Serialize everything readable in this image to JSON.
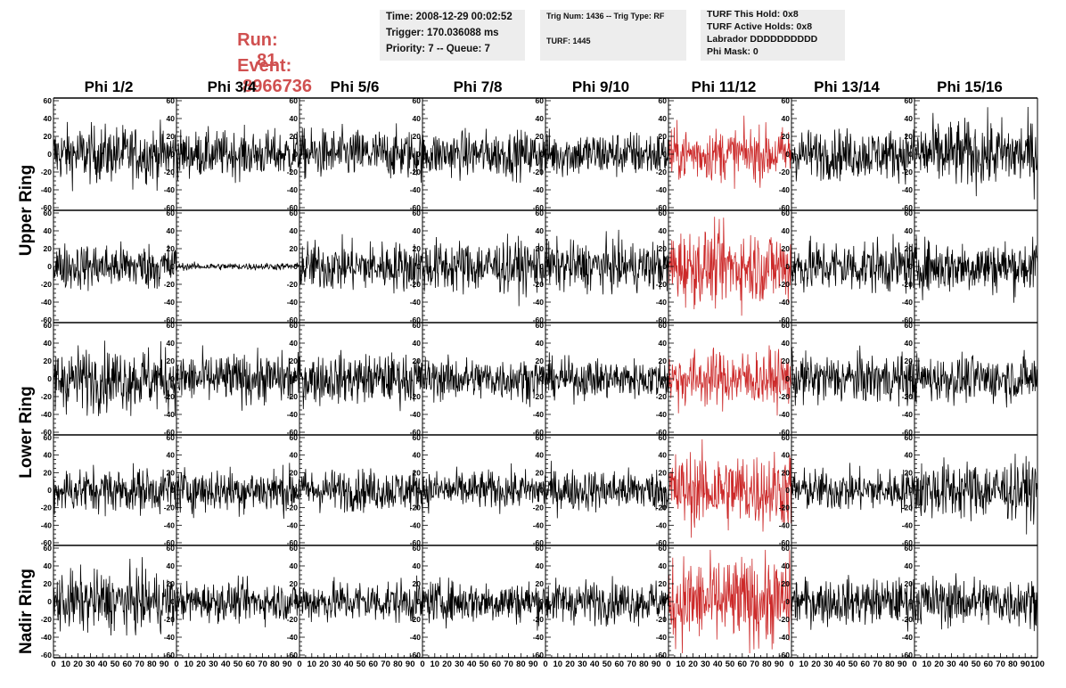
{
  "header": {
    "run_label": "Run:",
    "run_value": "81",
    "event_label": "Event:",
    "event_value": "8966736",
    "header_color": "#d05050",
    "time": "Time: 2008-12-29 00:02:52",
    "trigger": "Trigger: 170.036088 ms",
    "priority": "Priority: 7 -- Queue: 7",
    "trig_num": "Trig Num: 1436 -- Trig Type: RF",
    "turf": "TURF: 1445",
    "turf_hold": "TURF This Hold: 0x8",
    "turf_active": "TURF Active Holds: 0x8",
    "labrador": "Labrador DDDDDDDDDD",
    "phi_mask": "Phi Mask: 0"
  },
  "columns": [
    "Phi 1/2",
    "Phi 3/4",
    "Phi 5/6",
    "Phi 7/8",
    "Phi 9/10",
    "Phi 11/12",
    "Phi 13/14",
    "Phi 15/16"
  ],
  "rows": [
    "Upper Ring",
    "Lower Ring",
    "Nadir Ring"
  ],
  "chart_data": {
    "type": "line",
    "grid": false,
    "xlim": [
      0,
      100
    ],
    "ylim": [
      -60,
      60
    ],
    "ytick_labels": [
      "60",
      "40",
      "20",
      "0",
      "-20",
      "-40",
      "-60"
    ],
    "xtick_labels": [
      "0",
      "10",
      "20",
      "30",
      "40",
      "50",
      "60",
      "70",
      "80",
      "90",
      "100"
    ],
    "trace_color": "#000000",
    "highlight_color": "#cc2a2a",
    "highlighted_column": 5,
    "panels_grid": "5 rows x 8 columns",
    "trace_samples_per_panel": 260,
    "trace_amplitudes": [
      [
        16,
        13,
        14,
        13,
        13,
        15,
        14,
        19
      ],
      [
        13,
        2,
        14,
        15,
        14,
        21,
        15,
        15
      ],
      [
        18,
        14,
        14,
        12,
        11,
        16,
        14,
        13
      ],
      [
        13,
        13,
        12,
        11,
        12,
        22,
        12,
        17
      ],
      [
        17,
        11,
        12,
        12,
        12,
        25,
        13,
        14
      ]
    ]
  }
}
